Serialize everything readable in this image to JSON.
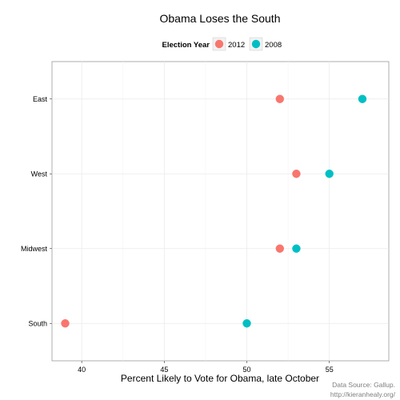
{
  "chart_data": {
    "type": "scatter",
    "title": "Obama Loses the South",
    "xlabel": "Percent Likely to Vote for Obama, late October",
    "ylabel": "",
    "legend": {
      "title": "Election Year",
      "placement": "top"
    },
    "categories": [
      "South",
      "Midwest",
      "West",
      "East"
    ],
    "x_ticks": [
      40,
      45,
      50,
      55
    ],
    "xlim": [
      38.2,
      58.6
    ],
    "grid": true,
    "series": [
      {
        "name": "2012",
        "color": "#F8766D",
        "values": [
          39,
          52,
          53,
          52
        ]
      },
      {
        "name": "2008",
        "color": "#00BFC4",
        "values": [
          50,
          53,
          55,
          57
        ]
      }
    ],
    "source_lines": [
      "Data Source: Gallup.",
      "http://kieranhealy.org/"
    ]
  }
}
